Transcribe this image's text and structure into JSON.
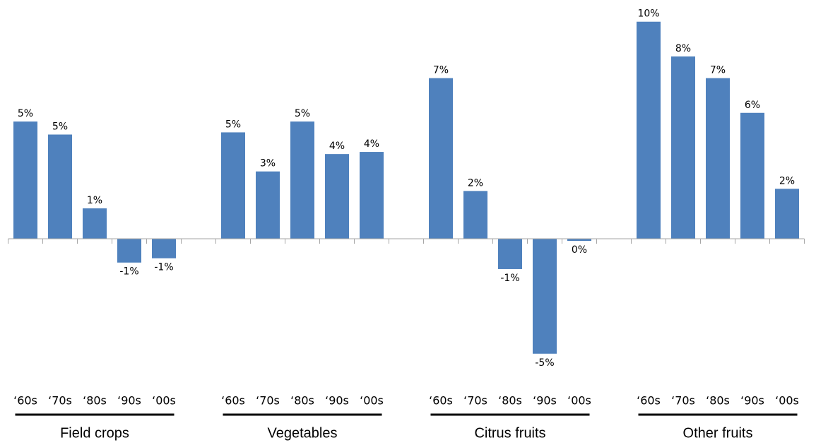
{
  "chart_data": {
    "type": "bar",
    "color": "#4f81bd",
    "ylim": [
      -7,
      11
    ],
    "groups": [
      {
        "name": "Field crops",
        "categories": [
          "‘60s",
          "‘70s",
          "‘80s",
          "‘90s",
          "‘00s"
        ],
        "values": [
          5.4,
          4.8,
          1.4,
          -1.1,
          -0.9
        ],
        "value_labels": [
          "5%",
          "5%",
          "1%",
          "-1%",
          "-1%"
        ]
      },
      {
        "name": "Vegetables",
        "categories": [
          "‘60s",
          "‘70s",
          "‘80s",
          "‘90s",
          "‘00s"
        ],
        "values": [
          4.9,
          3.1,
          5.4,
          3.9,
          4.0
        ],
        "value_labels": [
          "5%",
          "3%",
          "5%",
          "4%",
          "4%"
        ]
      },
      {
        "name": "Citrus fruits",
        "categories": [
          "‘60s",
          "‘70s",
          "‘80s",
          "‘90s",
          "‘00s"
        ],
        "values": [
          7.4,
          2.2,
          -1.4,
          -5.3,
          -0.1
        ],
        "value_labels": [
          "7%",
          "2%",
          "-1%",
          "-5%",
          "0%"
        ]
      },
      {
        "name": "Other fruits",
        "categories": [
          "‘60s",
          "‘70s",
          "‘80s",
          "‘90s",
          "‘00s"
        ],
        "values": [
          10.0,
          8.4,
          7.4,
          5.8,
          2.3
        ],
        "value_labels": [
          "10%",
          "8%",
          "7%",
          "6%",
          "2%"
        ]
      }
    ]
  }
}
